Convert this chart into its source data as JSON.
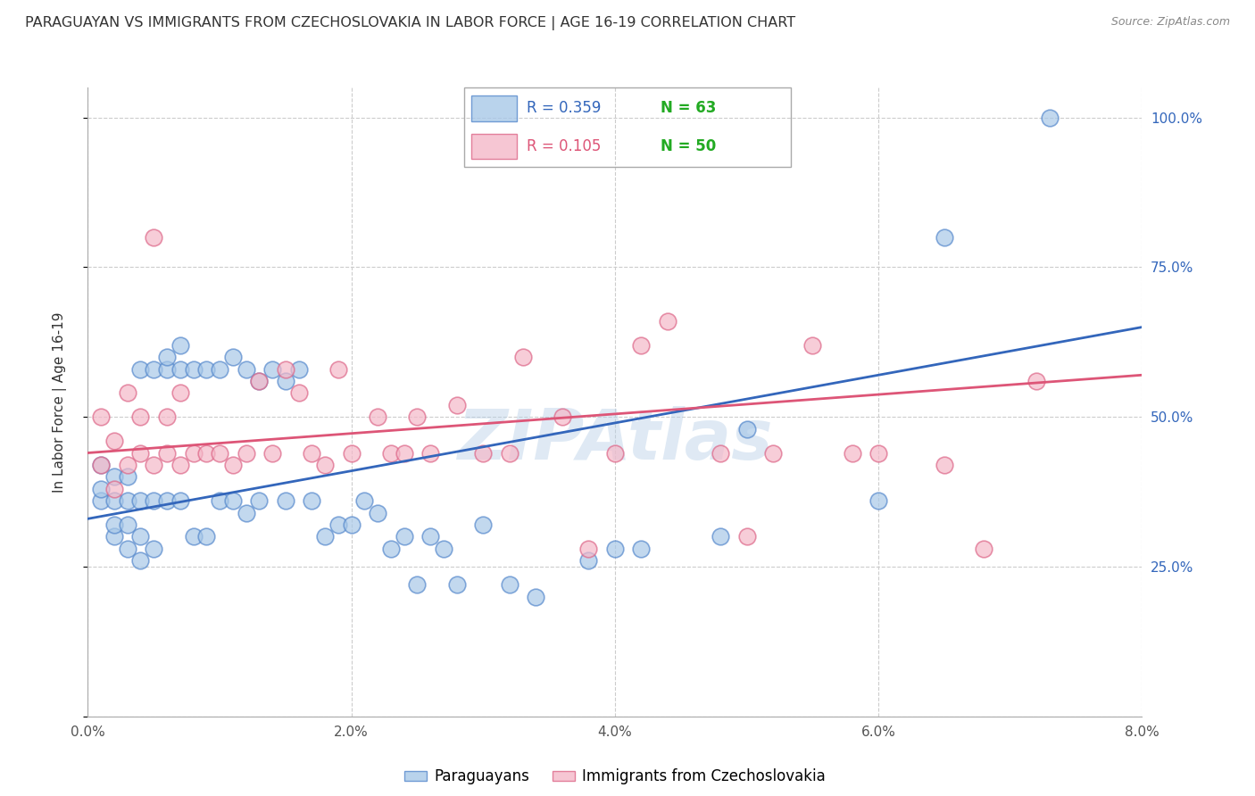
{
  "title": "PARAGUAYAN VS IMMIGRANTS FROM CZECHOSLOVAKIA IN LABOR FORCE | AGE 16-19 CORRELATION CHART",
  "source": "Source: ZipAtlas.com",
  "ylabel": "In Labor Force | Age 16-19",
  "ytick_labels_right": [
    "",
    "25.0%",
    "50.0%",
    "75.0%",
    "100.0%"
  ],
  "xmin": 0.0,
  "xmax": 0.08,
  "ymin": 0.0,
  "ymax": 1.05,
  "blue_R": 0.359,
  "blue_N": 63,
  "pink_R": 0.105,
  "pink_N": 50,
  "blue_color": "#a8c8e8",
  "pink_color": "#f4b8c8",
  "blue_edge_color": "#5588cc",
  "pink_edge_color": "#dd6688",
  "blue_line_color": "#3366bb",
  "pink_line_color": "#dd5577",
  "legend_label_blue": "Paraguayans",
  "legend_label_pink": "Immigrants from Czechoslovakia",
  "watermark": "ZIPAtlas",
  "watermark_color": "#b8d0e8",
  "blue_R_color": "#3366bb",
  "blue_N_color": "#22aa22",
  "pink_R_color": "#dd5577",
  "pink_N_color": "#22aa22",
  "blue_scatter_x": [
    0.001,
    0.001,
    0.001,
    0.002,
    0.002,
    0.002,
    0.002,
    0.003,
    0.003,
    0.003,
    0.003,
    0.004,
    0.004,
    0.004,
    0.004,
    0.005,
    0.005,
    0.005,
    0.006,
    0.006,
    0.006,
    0.007,
    0.007,
    0.007,
    0.008,
    0.008,
    0.009,
    0.009,
    0.01,
    0.01,
    0.011,
    0.011,
    0.012,
    0.012,
    0.013,
    0.013,
    0.014,
    0.015,
    0.015,
    0.016,
    0.017,
    0.018,
    0.019,
    0.02,
    0.021,
    0.022,
    0.023,
    0.024,
    0.025,
    0.026,
    0.027,
    0.028,
    0.03,
    0.032,
    0.034,
    0.038,
    0.04,
    0.042,
    0.048,
    0.05,
    0.06,
    0.065,
    0.073
  ],
  "blue_scatter_y": [
    0.36,
    0.38,
    0.42,
    0.3,
    0.32,
    0.36,
    0.4,
    0.28,
    0.32,
    0.36,
    0.4,
    0.26,
    0.3,
    0.36,
    0.58,
    0.28,
    0.36,
    0.58,
    0.36,
    0.58,
    0.6,
    0.36,
    0.58,
    0.62,
    0.3,
    0.58,
    0.3,
    0.58,
    0.36,
    0.58,
    0.36,
    0.6,
    0.34,
    0.58,
    0.36,
    0.56,
    0.58,
    0.36,
    0.56,
    0.58,
    0.36,
    0.3,
    0.32,
    0.32,
    0.36,
    0.34,
    0.28,
    0.3,
    0.22,
    0.3,
    0.28,
    0.22,
    0.32,
    0.22,
    0.2,
    0.26,
    0.28,
    0.28,
    0.3,
    0.48,
    0.36,
    0.8,
    1.0
  ],
  "pink_scatter_x": [
    0.001,
    0.001,
    0.002,
    0.002,
    0.003,
    0.003,
    0.004,
    0.004,
    0.005,
    0.005,
    0.006,
    0.006,
    0.007,
    0.007,
    0.008,
    0.009,
    0.01,
    0.011,
    0.012,
    0.013,
    0.014,
    0.015,
    0.016,
    0.017,
    0.018,
    0.019,
    0.02,
    0.022,
    0.023,
    0.024,
    0.025,
    0.026,
    0.028,
    0.03,
    0.032,
    0.033,
    0.036,
    0.038,
    0.04,
    0.042,
    0.044,
    0.048,
    0.05,
    0.052,
    0.055,
    0.058,
    0.06,
    0.065,
    0.068,
    0.072
  ],
  "pink_scatter_y": [
    0.42,
    0.5,
    0.38,
    0.46,
    0.42,
    0.54,
    0.44,
    0.5,
    0.42,
    0.8,
    0.44,
    0.5,
    0.42,
    0.54,
    0.44,
    0.44,
    0.44,
    0.42,
    0.44,
    0.56,
    0.44,
    0.58,
    0.54,
    0.44,
    0.42,
    0.58,
    0.44,
    0.5,
    0.44,
    0.44,
    0.5,
    0.44,
    0.52,
    0.44,
    0.44,
    0.6,
    0.5,
    0.28,
    0.44,
    0.62,
    0.66,
    0.44,
    0.3,
    0.44,
    0.62,
    0.44,
    0.44,
    0.42,
    0.28,
    0.56
  ]
}
